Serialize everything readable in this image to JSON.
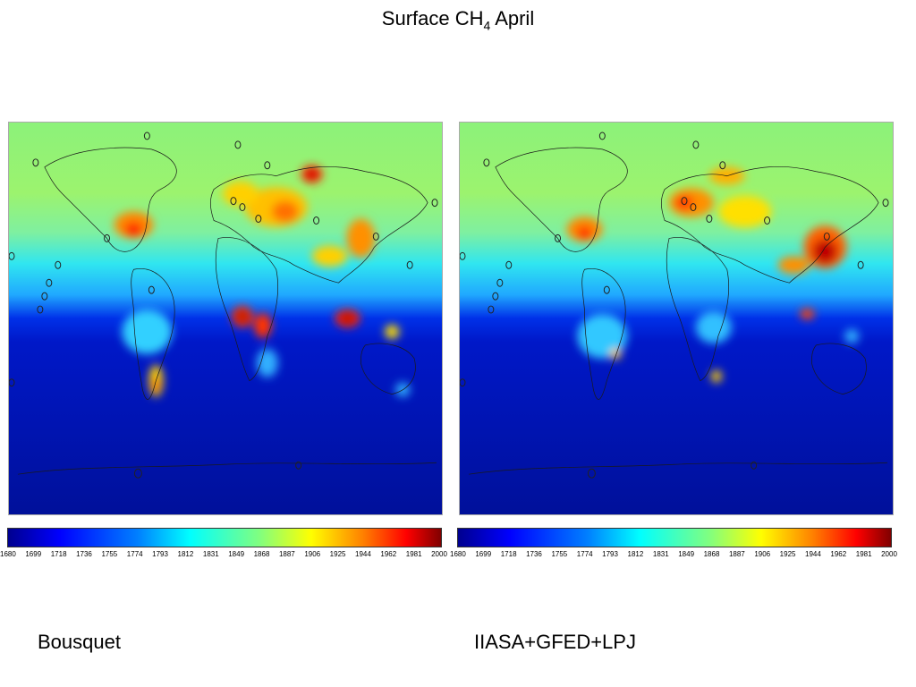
{
  "title": {
    "text": "Surface CH",
    "subscript": "4",
    "suffix": " April"
  },
  "colorbar": {
    "ticks": [
      "1680",
      "1699",
      "1718",
      "1736",
      "1755",
      "1774",
      "1793",
      "1812",
      "1831",
      "1849",
      "1868",
      "1887",
      "1906",
      "1925",
      "1944",
      "1962",
      "1981",
      "2000"
    ]
  },
  "panels": [
    {
      "label": "Bousquet"
    },
    {
      "label": "IIASA+GFED+LPJ"
    }
  ]
}
